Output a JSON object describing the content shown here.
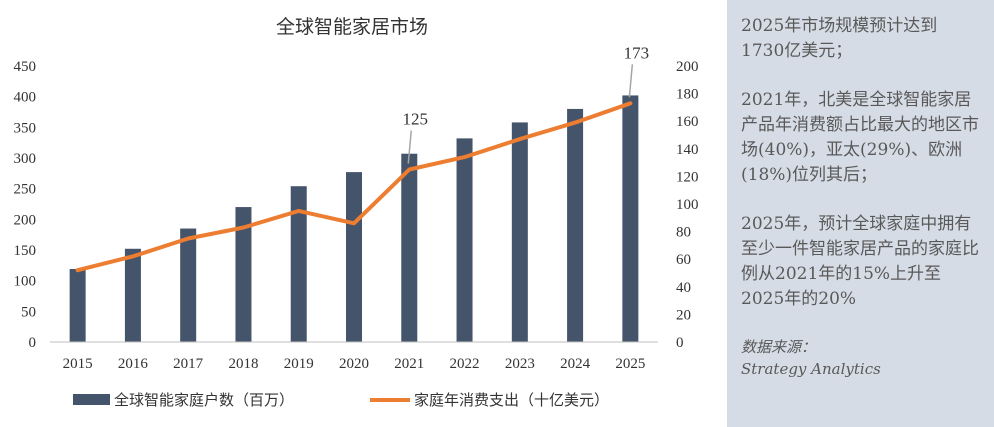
{
  "chart_data": {
    "type": "bar+line",
    "title": "全球智能家居市场",
    "categories": [
      "2015",
      "2016",
      "2017",
      "2018",
      "2019",
      "2020",
      "2021",
      "2022",
      "2023",
      "2024",
      "2025"
    ],
    "series": [
      {
        "name": "全球智能家庭户数（百万）",
        "type": "bar",
        "axis": "left",
        "values": [
          119,
          152,
          185,
          220,
          254,
          277,
          307,
          332,
          358,
          380,
          402
        ]
      },
      {
        "name": "家庭年消费支出（十亿美元）",
        "type": "line",
        "axis": "right",
        "values": [
          52,
          62,
          75,
          83,
          95,
          86,
          125,
          134,
          147,
          159,
          173
        ]
      }
    ],
    "y_left": {
      "min": 0,
      "max": 450,
      "ticks": [
        0,
        50,
        100,
        150,
        200,
        250,
        300,
        350,
        400,
        450
      ]
    },
    "y_right": {
      "min": 0,
      "max": 200,
      "ticks": [
        0,
        20,
        40,
        60,
        80,
        100,
        120,
        140,
        160,
        180,
        200
      ]
    },
    "annotations": [
      {
        "category": "2021",
        "text": "125"
      },
      {
        "category": "2025",
        "text": "173"
      }
    ],
    "legend_position": "bottom",
    "grid": false,
    "colors": {
      "bar": "#44546a",
      "line": "#ed7d31",
      "axis": "#bfbfbf",
      "callout": "#a6a6a6"
    }
  },
  "side_panel": {
    "paragraphs": [
      "2025年市场规模预计达到1730亿美元；",
      "2021年，北美是全球智能家居产品年消费额占比最大的地区市场(40%)，亚太(29%)、欧洲(18%)位列其后；",
      "2025年，预计全球家庭中拥有至少一件智能家居产品的家庭比例从2021年的15%上升至2025年的20%"
    ],
    "source_label": "数据来源：",
    "source_name": "Strategy Analytics",
    "background": "#d6dce6"
  }
}
